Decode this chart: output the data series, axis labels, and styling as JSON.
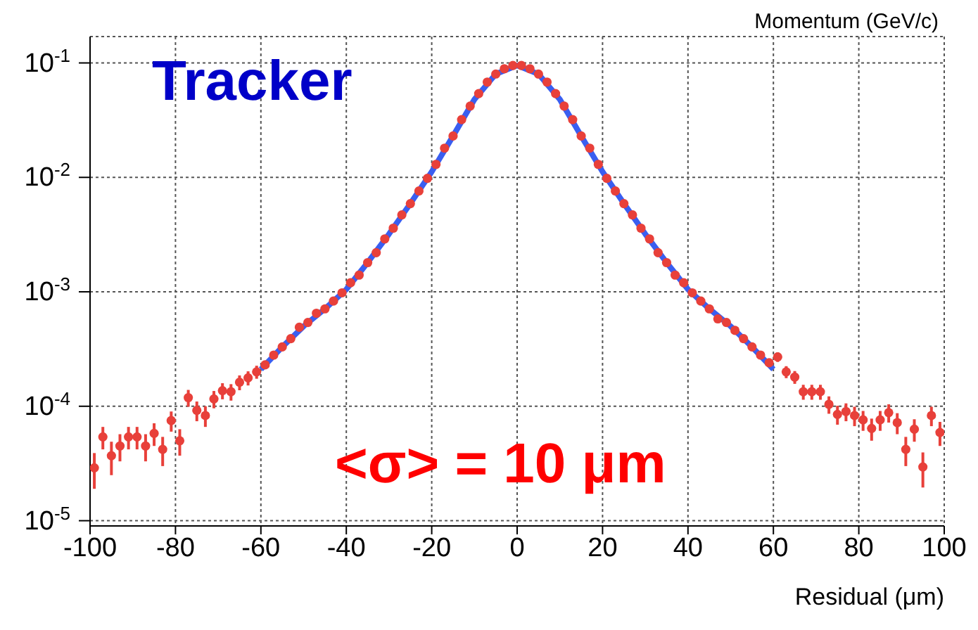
{
  "chart_data": {
    "type": "scatter",
    "xlabel": "Residual (μm)",
    "annotations": [
      "Tracker",
      "<σ> = 10 μm",
      "Momentum (GeV/c)"
    ],
    "xlim": [
      -100,
      100
    ],
    "xticks": [
      -100,
      -80,
      -60,
      -40,
      -20,
      0,
      20,
      40,
      60,
      80,
      100
    ],
    "ylim": [
      9e-06,
      0.17
    ],
    "yticks": [
      {
        "value": 1e-05,
        "label": "10$^{-5}$"
      },
      {
        "value": 0.0001,
        "label": "10$^{-4}$"
      },
      {
        "value": 0.001,
        "label": "10$^{-3}$"
      },
      {
        "value": 0.01,
        "label": "10$^{-2}$"
      },
      {
        "value": 0.1,
        "label": "10$^{-1}$"
      }
    ],
    "log": "y",
    "grid": true,
    "series": [
      {
        "color": "#e8403a",
        "marker": "circle",
        "x": [
          -99,
          -97,
          -95,
          -93,
          -91,
          -89,
          -87,
          -85,
          -83,
          -81,
          -79,
          -77,
          -75,
          -73,
          -71,
          -69,
          -67,
          -65,
          -63,
          -61,
          -59,
          -57,
          -55,
          -53,
          -51,
          -49,
          -47,
          -45,
          -43,
          -41,
          -39,
          -37,
          -35,
          -33,
          -31,
          -29,
          -27,
          -25,
          -23,
          -21,
          -19,
          -17,
          -15,
          -13,
          -11,
          -9,
          -7,
          -5,
          -3,
          -1,
          1,
          3,
          5,
          7,
          9,
          11,
          13,
          15,
          17,
          19,
          21,
          23,
          25,
          27,
          29,
          31,
          33,
          35,
          37,
          39,
          41,
          43,
          45,
          47,
          49,
          51,
          53,
          55,
          57,
          59,
          61,
          63,
          65,
          67,
          69,
          71,
          73,
          75,
          77,
          79,
          81,
          83,
          85,
          87,
          89,
          91,
          93,
          95,
          97,
          99
        ],
        "values": [
          2.9e-05,
          5.4e-05,
          3.7e-05,
          4.5e-05,
          5.4e-05,
          5.4e-05,
          4.5e-05,
          5.8e-05,
          4.2e-05,
          7.5e-05,
          5e-05,
          0.000119,
          9.2e-05,
          8.3e-05,
          0.000116,
          0.000137,
          0.000134,
          0.000162,
          0.000177,
          0.0002,
          0.00023,
          0.00028,
          0.00033,
          0.00039,
          0.00049,
          0.00054,
          0.00065,
          0.00071,
          0.00083,
          0.00098,
          0.0012,
          0.0014,
          0.0018,
          0.0022,
          0.0029,
          0.0036,
          0.0047,
          0.0059,
          0.0076,
          0.0098,
          0.013,
          0.018,
          0.023,
          0.032,
          0.042,
          0.054,
          0.068,
          0.08,
          0.089,
          0.095,
          0.095,
          0.089,
          0.08,
          0.068,
          0.054,
          0.042,
          0.032,
          0.023,
          0.018,
          0.013,
          0.0098,
          0.0076,
          0.0059,
          0.0047,
          0.0036,
          0.0029,
          0.0022,
          0.0018,
          0.0014,
          0.0012,
          0.00098,
          0.00083,
          0.00071,
          0.00058,
          0.00054,
          0.00046,
          0.00039,
          0.00033,
          0.00028,
          0.00024,
          0.00027,
          0.0002,
          0.00018,
          0.000134,
          0.000134,
          0.000134,
          0.000104,
          8.5e-05,
          9e-05,
          8.3e-05,
          7.6e-05,
          6.4e-05,
          7.6e-05,
          8.8e-05,
          7.2e-05,
          4.2e-05,
          6.3e-05,
          2.95e-05,
          8.3e-05,
          5.9e-05
        ],
        "errors": [
          1e-05,
          1.2e-05,
          1.2e-05,
          1.2e-05,
          1.2e-05,
          1.2e-05,
          1.2e-05,
          1.3e-05,
          1.2e-05,
          1.5e-05,
          1.3e-05,
          2e-05,
          1.8e-05,
          1.7e-05,
          2e-05,
          2.2e-05,
          2.2e-05,
          2.4e-05,
          2.5e-05,
          2.6e-05,
          null,
          null,
          null,
          null,
          null,
          null,
          null,
          null,
          null,
          null,
          null,
          null,
          null,
          null,
          null,
          null,
          null,
          null,
          null,
          null,
          null,
          null,
          null,
          null,
          null,
          null,
          null,
          null,
          null,
          null,
          null,
          null,
          null,
          null,
          null,
          null,
          null,
          null,
          null,
          null,
          null,
          null,
          null,
          null,
          null,
          null,
          null,
          null,
          null,
          null,
          null,
          null,
          null,
          null,
          null,
          null,
          null,
          null,
          null,
          null,
          2.6e-05,
          2.4e-05,
          2.3e-05,
          2e-05,
          2e-05,
          2e-05,
          1.8e-05,
          1.6e-05,
          1.6e-05,
          1.6e-05,
          1.5e-05,
          1.4e-05,
          1.5e-05,
          1.6e-05,
          1.5e-05,
          1.2e-05,
          1.4e-05,
          1e-05,
          1.6e-05,
          1.4e-05
        ]
      },
      {
        "type": "line",
        "color": "#3a5ef0",
        "marker": "none",
        "line_style": "solid",
        "x": [
          -60,
          -55,
          -50,
          -45,
          -40,
          -35,
          -30,
          -25,
          -20,
          -15,
          -10,
          -5,
          0,
          5,
          10,
          15,
          20,
          25,
          30,
          35,
          40,
          45,
          50,
          55,
          60
        ],
        "values": [
          0.00021,
          0.00033,
          0.0005,
          0.00071,
          0.00105,
          0.0018,
          0.0032,
          0.0059,
          0.0112,
          0.023,
          0.048,
          0.08,
          0.095,
          0.08,
          0.048,
          0.023,
          0.0112,
          0.0059,
          0.0032,
          0.0018,
          0.00105,
          0.00071,
          0.0005,
          0.00033,
          0.00021
        ]
      }
    ]
  }
}
